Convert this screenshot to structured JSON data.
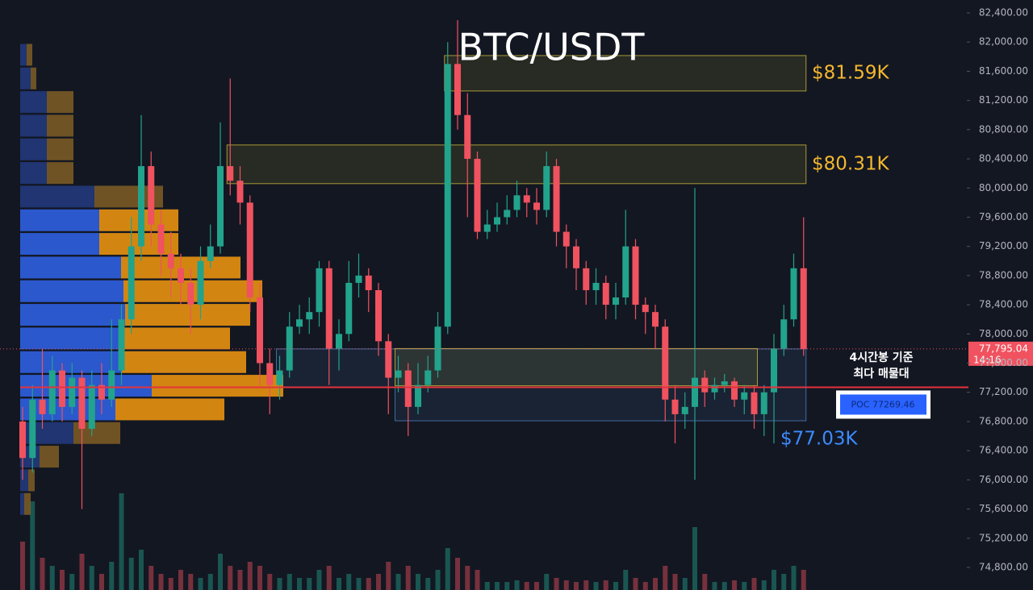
{
  "chart_data": {
    "type": "candlestick",
    "title": "BTC/USDT",
    "ylim": [
      74800,
      82400
    ],
    "yticks": [
      {
        "value": 82400,
        "label": "82,400.00"
      },
      {
        "value": 82000,
        "label": "82,000.00"
      },
      {
        "value": 81600,
        "label": "81,600.00"
      },
      {
        "value": 81200,
        "label": "81,200.00"
      },
      {
        "value": 80800,
        "label": "80,800.00"
      },
      {
        "value": 80400,
        "label": "80,400.00"
      },
      {
        "value": 80000,
        "label": "80,000.00"
      },
      {
        "value": 79600,
        "label": "79,600.00"
      },
      {
        "value": 79200,
        "label": "79,200.00"
      },
      {
        "value": 78800,
        "label": "78,800.00"
      },
      {
        "value": 78400,
        "label": "78,400.00"
      },
      {
        "value": 78000,
        "label": "78,000.00"
      },
      {
        "value": 77600,
        "label": "77,600.00"
      },
      {
        "value": 77200,
        "label": "77,200.00"
      },
      {
        "value": 76800,
        "label": "76,800.00"
      },
      {
        "value": 76400,
        "label": "76,400.00"
      },
      {
        "value": 76000,
        "label": "76,000.00"
      },
      {
        "value": 75600,
        "label": "75,600.00"
      },
      {
        "value": 75200,
        "label": "75,200.00"
      },
      {
        "value": 74800,
        "label": "74,800.00"
      }
    ],
    "colors": {
      "up": "#22a38c",
      "down": "#f0525f"
    },
    "open": [
      76800,
      76300,
      77100,
      76900,
      77500,
      77000,
      77400,
      76700,
      77300,
      77100,
      77500,
      78200,
      79200,
      80300,
      79500,
      79100,
      78900,
      78700,
      78400,
      79000,
      79200,
      80300,
      80100,
      79800,
      78500,
      77600,
      77300,
      77500,
      78100,
      78200,
      78300,
      78900,
      77800,
      78000,
      78700,
      78800,
      78600,
      77900,
      77400,
      77500,
      77000,
      77300,
      77500,
      78100,
      81700,
      81000,
      80400,
      79400,
      79500,
      79600,
      79700,
      79900,
      79800,
      79700,
      80300,
      79400,
      79200,
      78900,
      78600,
      78700,
      78400,
      78500,
      79200,
      78400,
      78300,
      78100,
      77100,
      76900,
      77000,
      77400,
      77200,
      77300,
      77350,
      77100,
      77200,
      76900,
      77200,
      77800,
      78200,
      78900
    ],
    "high": [
      77000,
      77300,
      77800,
      77700,
      77600,
      77600,
      77500,
      77500,
      77600,
      78200,
      78400,
      79600,
      81000,
      80500,
      79700,
      79400,
      79100,
      78900,
      79200,
      79500,
      80900,
      81500,
      80300,
      79900,
      78700,
      77800,
      77700,
      78300,
      78400,
      78500,
      79000,
      79000,
      78200,
      79000,
      79100,
      78900,
      78700,
      78000,
      77700,
      77600,
      77600,
      77700,
      78300,
      82000,
      82300,
      81300,
      80500,
      79700,
      79800,
      79900,
      80100,
      80000,
      80000,
      80500,
      80400,
      79500,
      79300,
      79000,
      78900,
      78800,
      78700,
      79700,
      79300,
      78500,
      78400,
      78200,
      77300,
      77200,
      80000,
      77500,
      77400,
      77450,
      77400,
      77300,
      77300,
      77300,
      78000,
      78400,
      79100,
      79600
    ],
    "low": [
      76000,
      76100,
      76700,
      76800,
      76800,
      76900,
      75600,
      76600,
      76900,
      77000,
      77300,
      78000,
      79000,
      79200,
      78800,
      78500,
      78400,
      78000,
      78200,
      78900,
      79100,
      79900,
      79500,
      78300,
      77300,
      76900,
      77100,
      77400,
      78000,
      78000,
      78100,
      77300,
      77500,
      77900,
      78500,
      78300,
      77700,
      76900,
      77200,
      76600,
      76900,
      77200,
      77400,
      78000,
      80800,
      79600,
      79300,
      79300,
      79400,
      79500,
      79600,
      79600,
      79500,
      79600,
      79200,
      78900,
      78600,
      78400,
      78400,
      78200,
      78200,
      78400,
      78200,
      78000,
      77800,
      76800,
      76500,
      76700,
      76000,
      77000,
      77100,
      77200,
      77000,
      76900,
      76700,
      76600,
      76500,
      77700,
      78100,
      77700
    ],
    "close": [
      76300,
      77100,
      76900,
      77500,
      77000,
      77400,
      76700,
      77300,
      77100,
      77500,
      78200,
      79200,
      80300,
      79500,
      79100,
      78900,
      78700,
      78400,
      79000,
      79200,
      80300,
      80100,
      79800,
      78500,
      77600,
      77300,
      77500,
      78100,
      78200,
      78300,
      78900,
      77800,
      78000,
      78700,
      78800,
      78600,
      77900,
      77400,
      77500,
      77000,
      77300,
      77500,
      78100,
      81700,
      81000,
      80400,
      79400,
      79500,
      79600,
      79700,
      79900,
      79800,
      79700,
      80300,
      79400,
      79200,
      78900,
      78600,
      78700,
      78400,
      78500,
      79200,
      78400,
      78300,
      78100,
      77100,
      76900,
      77000,
      77400,
      77200,
      77300,
      77350,
      77100,
      77200,
      76900,
      77200,
      77800,
      78200,
      78900,
      77795
    ],
    "volume": [
      60,
      110,
      40,
      30,
      25,
      20,
      45,
      30,
      20,
      35,
      120,
      40,
      50,
      30,
      20,
      15,
      25,
      20,
      15,
      20,
      45,
      30,
      25,
      35,
      30,
      20,
      15,
      20,
      15,
      15,
      25,
      30,
      15,
      20,
      15,
      15,
      20,
      35,
      20,
      30,
      20,
      15,
      25,
      52,
      40,
      30,
      25,
      10,
      10,
      10,
      12,
      10,
      10,
      20,
      15,
      12,
      10,
      12,
      10,
      12,
      10,
      25,
      15,
      10,
      15,
      30,
      20,
      15,
      78,
      20,
      10,
      10,
      12,
      10,
      15,
      12,
      25,
      20,
      30,
      25
    ],
    "volume_profile": {
      "levels": [
        81826,
        81502,
        81178,
        80854,
        80530,
        80206,
        79882,
        79558,
        79234,
        78910,
        78586,
        78262,
        77938,
        77614,
        77290,
        76966,
        76642,
        76318,
        75994,
        75670
      ],
      "buy": [
        8,
        13,
        33,
        33,
        33,
        33,
        92,
        98,
        98,
        125,
        128,
        130,
        125,
        125,
        163,
        118,
        66,
        24,
        10,
        5
      ],
      "sell": [
        7,
        7,
        33,
        33,
        33,
        33,
        85,
        98,
        98,
        148,
        172,
        155,
        135,
        155,
        163,
        135,
        58,
        24,
        8,
        8
      ],
      "value_area": [
        76800,
        79700
      ]
    },
    "zones": [
      {
        "label": "$81.59K",
        "high": 81815,
        "low": 81330,
        "start": 43,
        "color": "#c9b93a"
      },
      {
        "label": "$80.31K",
        "high": 80590,
        "low": 80060,
        "start": 21,
        "color": "#c9b93a"
      },
      {
        "high": 77795,
        "low": 77270,
        "start": 26,
        "color": "#4a7fc1"
      },
      {
        "high": 77800,
        "low": 77290,
        "start": 38,
        "end": 74,
        "color": "#c9b93a"
      },
      {
        "label": "$77.03K",
        "high": 77270,
        "low": 76810,
        "start": 38,
        "color": "#4a7fc1"
      }
    ],
    "last_price": {
      "value": 77795.04,
      "label": "77,795.04",
      "time": "14:16"
    },
    "poc": {
      "value": 77269.46,
      "label": "POC  77269.46"
    },
    "annotation": [
      "4시간봉 기준",
      "최다 매물대"
    ]
  }
}
